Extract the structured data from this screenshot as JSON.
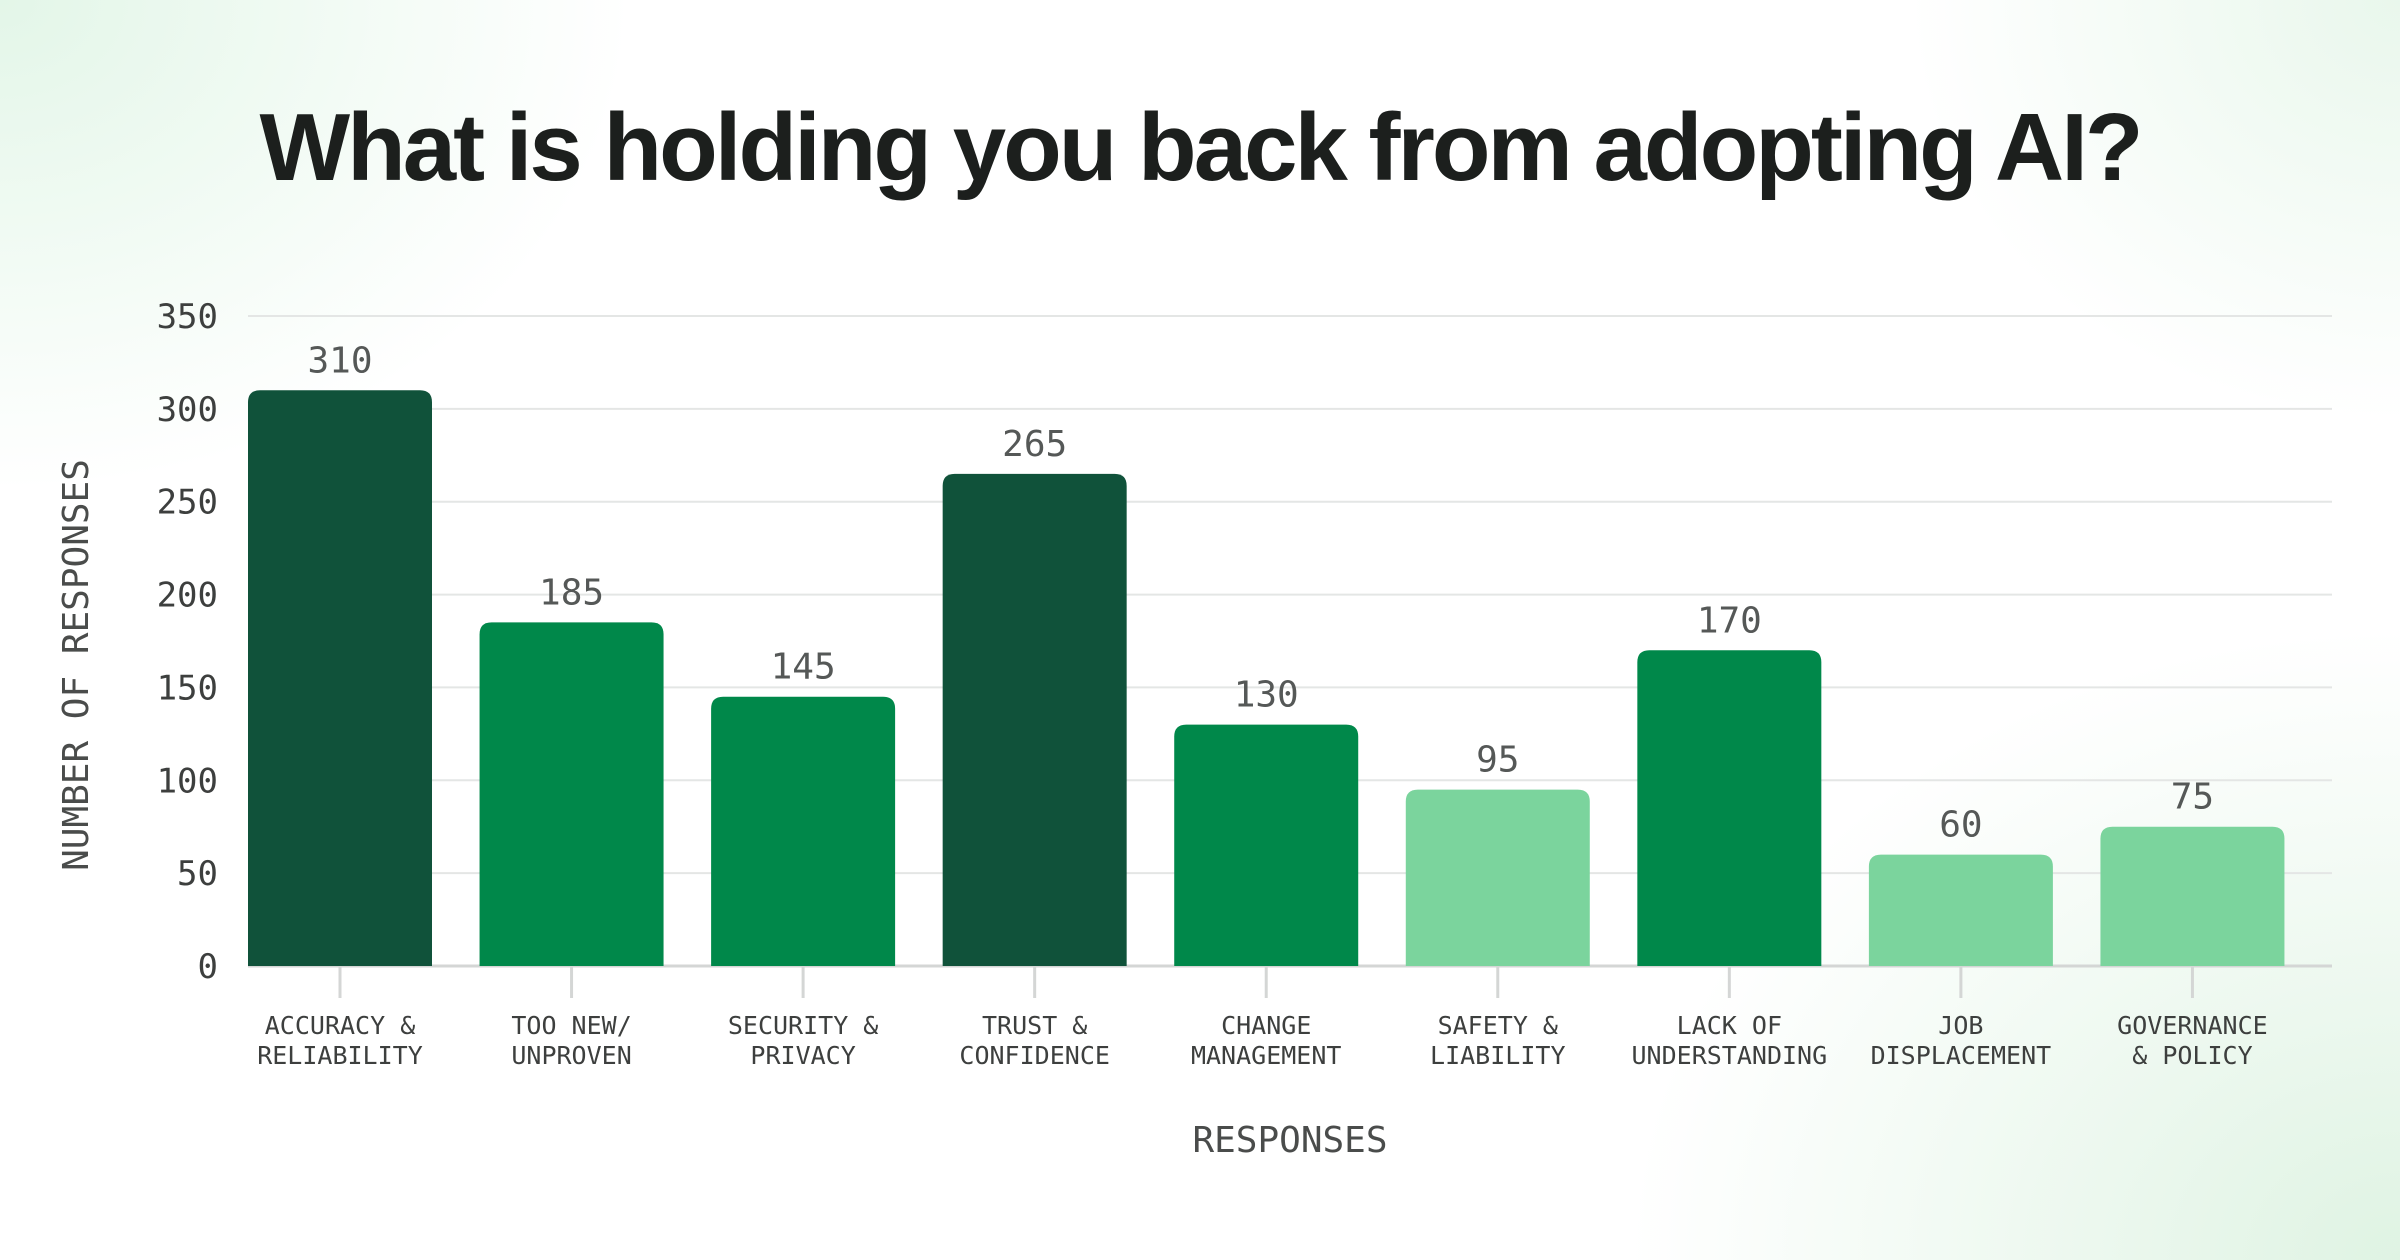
{
  "chart_data": {
    "type": "bar",
    "title": "What is holding you back from adopting AI?",
    "xlabel": "RESPONSES",
    "ylabel": "NUMBER OF RESPONSES",
    "ylim": [
      0,
      350
    ],
    "yticks": [
      "0",
      "50",
      "100",
      "150",
      "200",
      "250",
      "300",
      "350"
    ],
    "grid": true,
    "categories": [
      [
        "ACCURACY &",
        "RELIABILITY"
      ],
      [
        "TOO NEW/",
        "UNPROVEN"
      ],
      [
        "SECURITY &",
        "PRIVACY"
      ],
      [
        "TRUST &",
        "CONFIDENCE"
      ],
      [
        "CHANGE",
        "MANAGEMENT"
      ],
      [
        "SAFETY &",
        "LIABILITY"
      ],
      [
        "LACK OF",
        "UNDERSTANDING"
      ],
      [
        "JOB",
        "DISPLACEMENT"
      ],
      [
        "GOVERNANCE",
        "& POLICY"
      ]
    ],
    "values": [
      310,
      185,
      145,
      265,
      130,
      95,
      170,
      60,
      75
    ],
    "data_labels": [
      "310",
      "185",
      "145",
      "265",
      "130",
      "95",
      "170",
      "60",
      "75"
    ],
    "colors": {
      "high": "#10523a",
      "mid": "#00884a",
      "low": "#7bd49d",
      "grid": "#e4e6e5",
      "axis": "#d4d6d5"
    },
    "bar_color_levels": [
      "high",
      "mid",
      "mid",
      "high",
      "mid",
      "low",
      "mid",
      "low",
      "low"
    ]
  }
}
